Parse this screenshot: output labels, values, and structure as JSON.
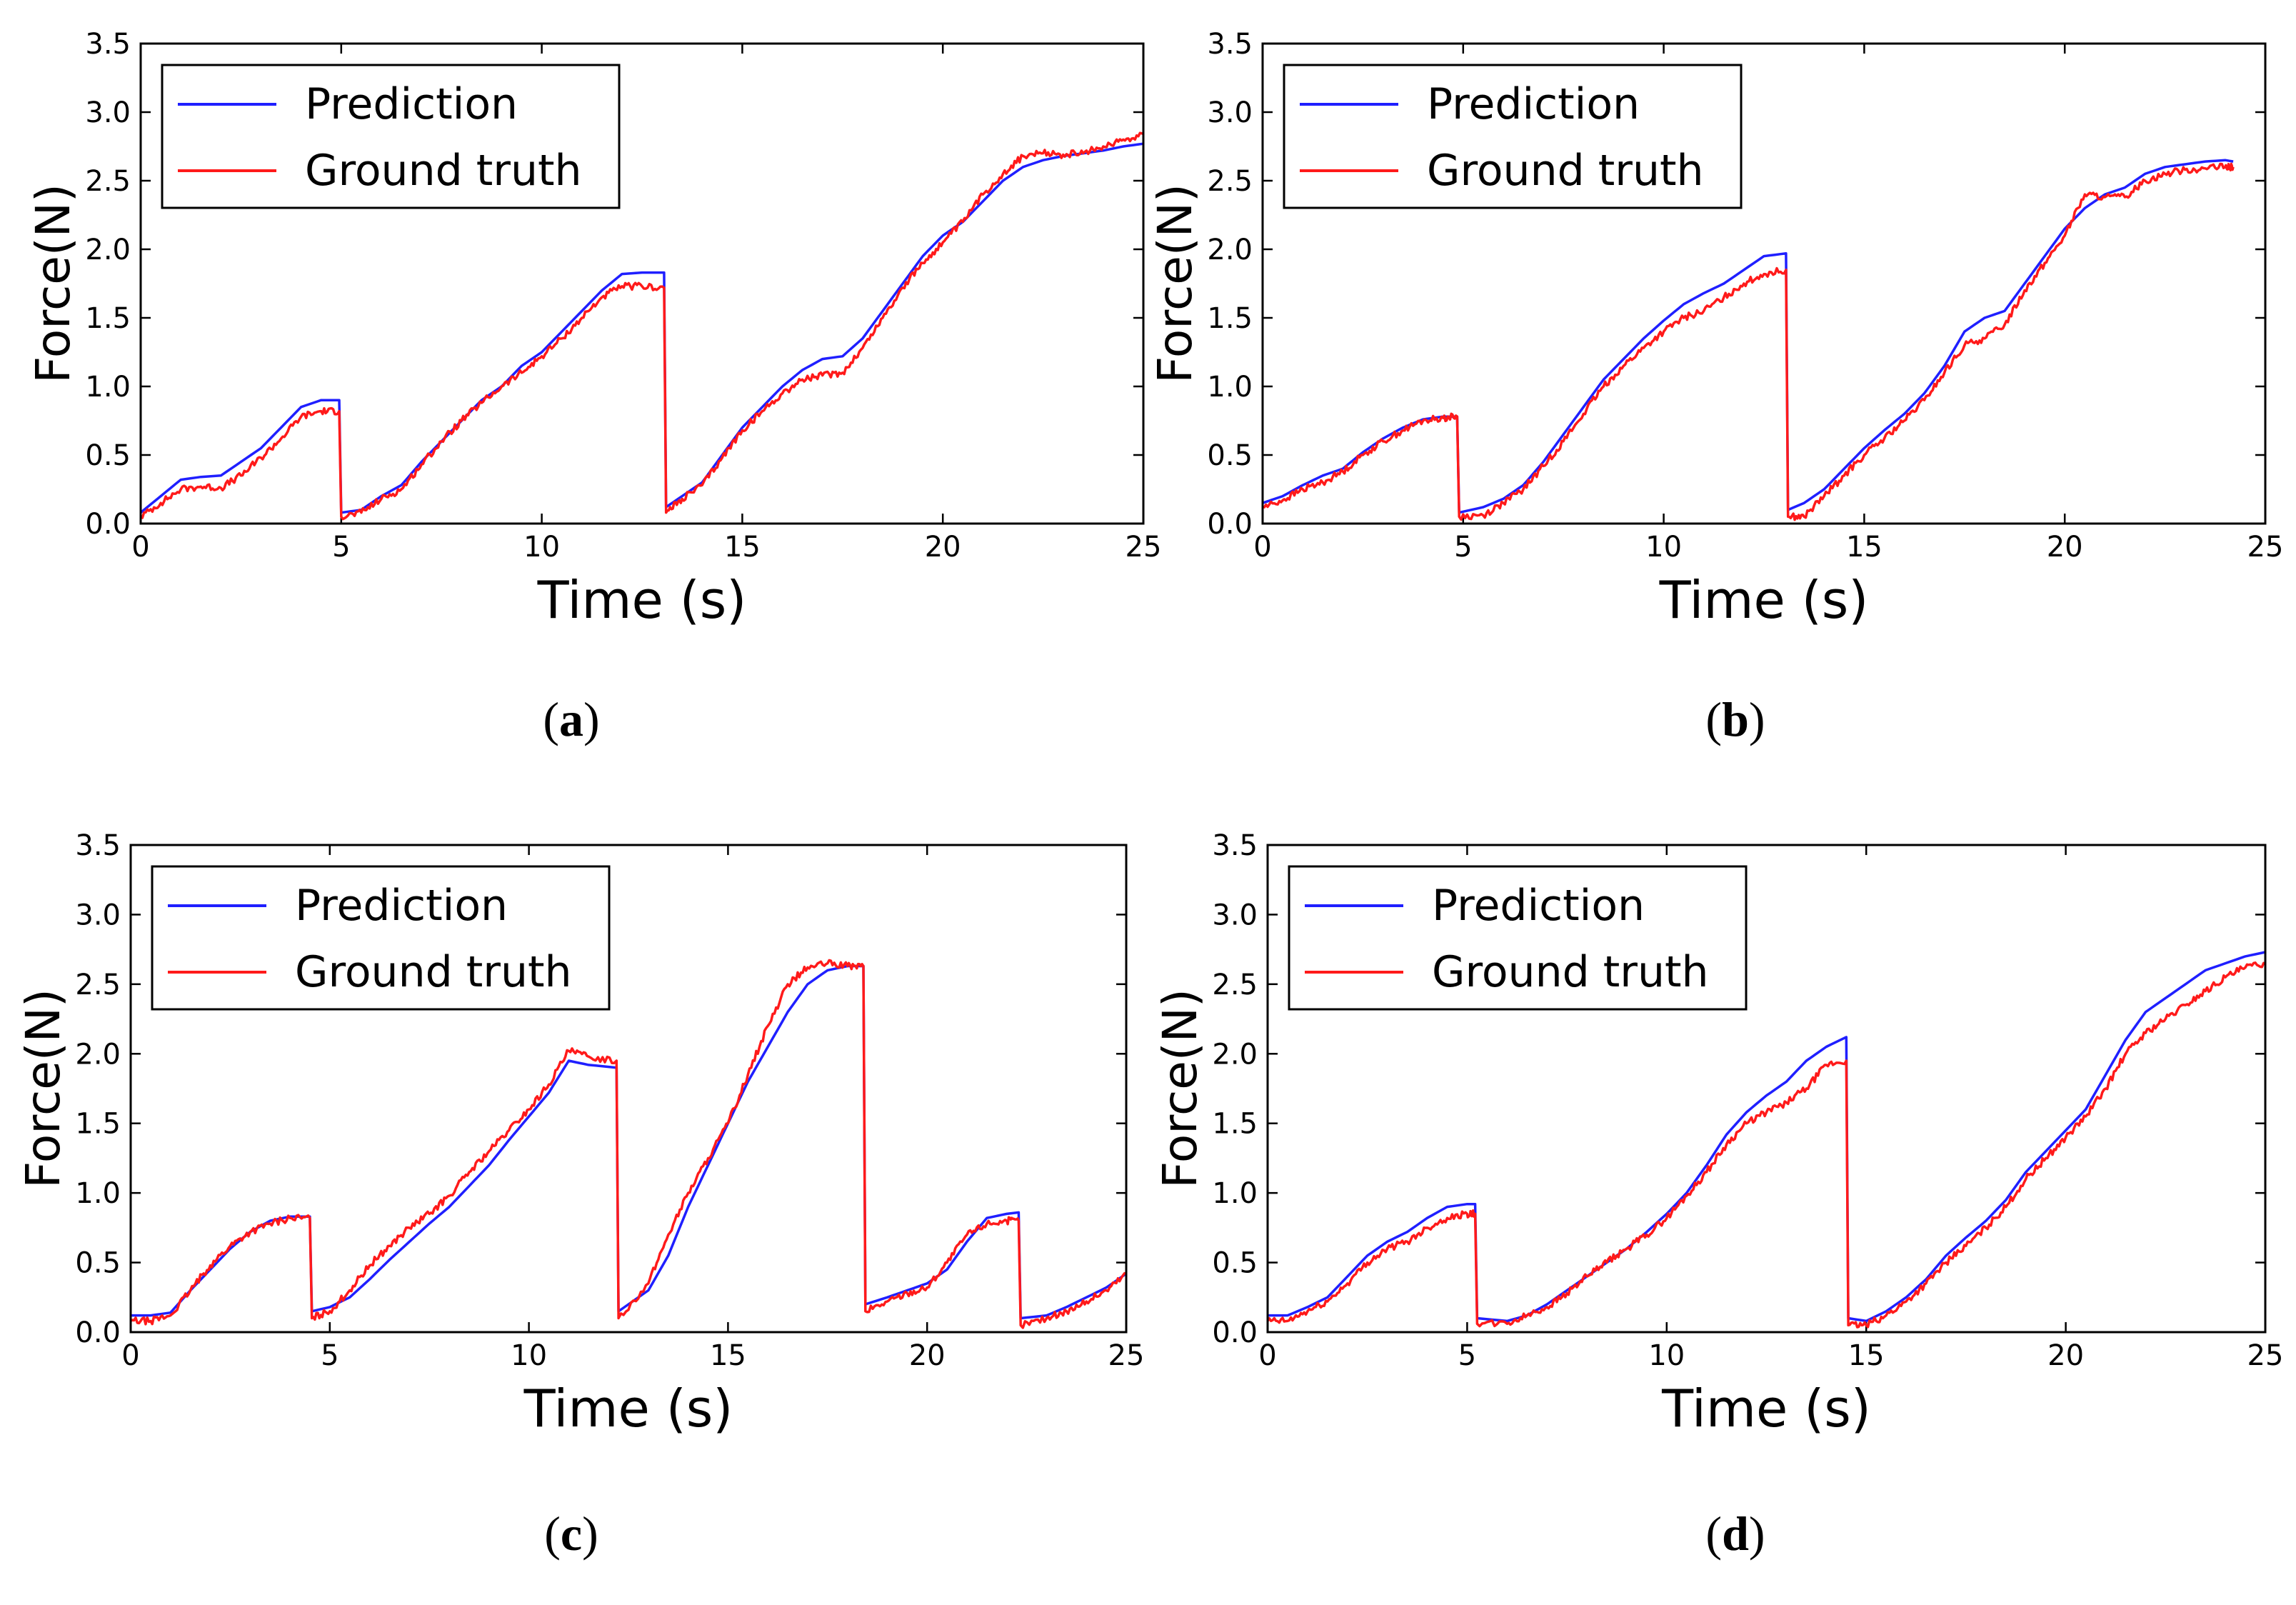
{
  "figure": {
    "legend_prediction": "Prediction",
    "legend_ground_truth": "Ground truth",
    "colors": {
      "prediction": "#1f1fff",
      "ground_truth": "#ff1a1a"
    }
  },
  "chart_data": [
    {
      "id": "a",
      "caption": "a",
      "type": "line",
      "xlabel": "Time (s)",
      "ylabel": "Force(N)",
      "xlim": [
        0,
        25
      ],
      "ylim": [
        0,
        3.5
      ],
      "xticks": [
        0,
        5,
        10,
        15,
        20,
        25
      ],
      "xtick_labels": [
        "0",
        "5",
        "10",
        "15",
        "20",
        "25"
      ],
      "yticks": [
        0,
        0.5,
        1,
        1.5,
        2,
        2.5,
        3,
        3.5
      ],
      "ytick_labels": [
        "0.0",
        "0.5",
        "1.0",
        "1.5",
        "2.0",
        "2.5",
        "3.0",
        "3.5"
      ],
      "legend": {
        "placement": "top-left",
        "entries": [
          "Prediction",
          "Ground truth"
        ]
      },
      "series": [
        {
          "name": "Prediction",
          "x": [
            0,
            0.5,
            1,
            1.5,
            2,
            2.5,
            3,
            3.5,
            4,
            4.5,
            4.95,
            5.0,
            5.5,
            6,
            6.5,
            7,
            7.5,
            8,
            8.5,
            9,
            9.5,
            10,
            10.5,
            11,
            11.5,
            12,
            12.5,
            13.05,
            13.1,
            13.5,
            14,
            14.5,
            15,
            15.5,
            16,
            16.5,
            17,
            17.5,
            18,
            18.5,
            19,
            19.5,
            20,
            20.5,
            21,
            21.5,
            22,
            22.5,
            23,
            23.5,
            24,
            24.5,
            25
          ],
          "y": [
            0.08,
            0.2,
            0.32,
            0.34,
            0.35,
            0.45,
            0.55,
            0.7,
            0.85,
            0.9,
            0.9,
            0.08,
            0.1,
            0.2,
            0.28,
            0.45,
            0.6,
            0.75,
            0.9,
            1.0,
            1.15,
            1.25,
            1.4,
            1.55,
            1.7,
            1.82,
            1.83,
            1.83,
            0.12,
            0.2,
            0.3,
            0.5,
            0.7,
            0.85,
            1.0,
            1.12,
            1.2,
            1.22,
            1.35,
            1.55,
            1.75,
            1.95,
            2.1,
            2.2,
            2.35,
            2.5,
            2.6,
            2.65,
            2.68,
            2.7,
            2.72,
            2.75,
            2.77
          ]
        },
        {
          "name": "Ground truth",
          "x": [
            0,
            0.5,
            1,
            1.5,
            2,
            2.5,
            3,
            3.5,
            4,
            4.5,
            4.95,
            5.0,
            5.5,
            6,
            6.5,
            7,
            7.5,
            8,
            8.5,
            9,
            9.5,
            10,
            10.5,
            11,
            11.5,
            12,
            12.5,
            13.05,
            13.1,
            13.5,
            14,
            14.5,
            15,
            15.5,
            16,
            16.5,
            17,
            17.5,
            18,
            18.5,
            19,
            19.5,
            20,
            20.5,
            21,
            21.5,
            22,
            22.5,
            23,
            23.5,
            24,
            24.5,
            25
          ],
          "y": [
            0.05,
            0.15,
            0.25,
            0.27,
            0.26,
            0.35,
            0.48,
            0.62,
            0.78,
            0.82,
            0.82,
            0.05,
            0.08,
            0.18,
            0.25,
            0.43,
            0.6,
            0.75,
            0.88,
            1.0,
            1.1,
            1.22,
            1.35,
            1.5,
            1.65,
            1.73,
            1.73,
            1.72,
            0.08,
            0.18,
            0.28,
            0.48,
            0.68,
            0.82,
            0.95,
            1.05,
            1.08,
            1.1,
            1.28,
            1.5,
            1.72,
            1.9,
            2.05,
            2.2,
            2.4,
            2.55,
            2.68,
            2.7,
            2.69,
            2.7,
            2.75,
            2.8,
            2.84
          ]
        }
      ]
    },
    {
      "id": "b",
      "caption": "b",
      "type": "line",
      "xlabel": "Time (s)",
      "ylabel": "Force(N)",
      "xlim": [
        0,
        25
      ],
      "ylim": [
        0,
        3.5
      ],
      "xticks": [
        0,
        5,
        10,
        15,
        20,
        25
      ],
      "xtick_labels": [
        "0",
        "5",
        "10",
        "15",
        "20",
        "25"
      ],
      "yticks": [
        0,
        0.5,
        1,
        1.5,
        2,
        2.5,
        3,
        3.5
      ],
      "ytick_labels": [
        "0.0",
        "0.5",
        "1.0",
        "1.5",
        "2.0",
        "2.5",
        "3.0",
        "3.5"
      ],
      "legend": {
        "placement": "top-left",
        "entries": [
          "Prediction",
          "Ground truth"
        ]
      },
      "series": [
        {
          "name": "Prediction",
          "x": [
            0,
            0.5,
            1,
            1.5,
            2,
            2.5,
            3,
            3.5,
            4,
            4.5,
            4.85,
            4.9,
            5.5,
            6,
            6.5,
            7,
            7.5,
            8,
            8.5,
            9,
            9.5,
            10,
            10.5,
            11,
            11.5,
            12,
            12.5,
            13.05,
            13.1,
            13.5,
            14,
            14.5,
            15,
            15.5,
            16,
            16.5,
            17,
            17.5,
            18,
            18.5,
            19,
            19.5,
            20,
            20.5,
            21,
            21.5,
            22,
            22.5,
            23,
            23.5,
            24,
            24.2
          ],
          "y": [
            0.15,
            0.2,
            0.28,
            0.35,
            0.4,
            0.52,
            0.62,
            0.7,
            0.76,
            0.78,
            0.78,
            0.08,
            0.12,
            0.18,
            0.28,
            0.45,
            0.65,
            0.85,
            1.05,
            1.2,
            1.35,
            1.48,
            1.6,
            1.68,
            1.75,
            1.85,
            1.95,
            1.97,
            0.1,
            0.15,
            0.25,
            0.4,
            0.55,
            0.68,
            0.8,
            0.95,
            1.15,
            1.4,
            1.5,
            1.55,
            1.75,
            1.95,
            2.15,
            2.3,
            2.4,
            2.45,
            2.55,
            2.6,
            2.62,
            2.64,
            2.65,
            2.64
          ]
        },
        {
          "name": "Ground truth",
          "x": [
            0,
            0.5,
            1,
            1.5,
            2,
            2.5,
            3,
            3.5,
            4,
            4.5,
            4.85,
            4.9,
            5.5,
            6,
            6.5,
            7,
            7.5,
            8,
            8.5,
            9,
            9.5,
            10,
            10.5,
            11,
            11.5,
            12,
            12.5,
            13.05,
            13.1,
            13.5,
            14,
            14.5,
            15,
            15.5,
            16,
            16.5,
            17,
            17.5,
            18,
            18.5,
            19,
            19.5,
            20,
            20.5,
            21,
            21.5,
            22,
            22.5,
            23,
            23.5,
            24,
            24.2
          ],
          "y": [
            0.12,
            0.17,
            0.25,
            0.3,
            0.38,
            0.5,
            0.6,
            0.68,
            0.75,
            0.77,
            0.78,
            0.05,
            0.06,
            0.15,
            0.25,
            0.42,
            0.6,
            0.8,
            1.0,
            1.15,
            1.28,
            1.4,
            1.5,
            1.55,
            1.65,
            1.75,
            1.82,
            1.85,
            0.05,
            0.05,
            0.2,
            0.35,
            0.5,
            0.62,
            0.75,
            0.9,
            1.1,
            1.3,
            1.35,
            1.45,
            1.7,
            1.9,
            2.1,
            2.4,
            2.38,
            2.38,
            2.5,
            2.55,
            2.58,
            2.59,
            2.6,
            2.6
          ]
        }
      ]
    },
    {
      "id": "c",
      "caption": "c",
      "type": "line",
      "xlabel": "Time (s)",
      "ylabel": "Force(N)",
      "xlim": [
        0,
        25
      ],
      "ylim": [
        0,
        3.5
      ],
      "xticks": [
        0,
        5,
        10,
        15,
        20,
        25
      ],
      "xtick_labels": [
        "0",
        "5",
        "10",
        "15",
        "20",
        "25"
      ],
      "yticks": [
        0,
        0.5,
        1,
        1.5,
        2,
        2.5,
        3,
        3.5
      ],
      "ytick_labels": [
        "0.0",
        "0.5",
        "1.0",
        "1.5",
        "2.0",
        "2.5",
        "3.0",
        "3.5"
      ],
      "legend": {
        "placement": "top-left",
        "entries": [
          "Prediction",
          "Ground truth"
        ]
      },
      "series": [
        {
          "name": "Prediction",
          "x": [
            0,
            0.5,
            1,
            1.5,
            2,
            2.5,
            3,
            3.5,
            4,
            4.5,
            4.55,
            5,
            5.5,
            6,
            6.5,
            7,
            7.5,
            8,
            8.5,
            9,
            9.5,
            10,
            10.5,
            11,
            11.5,
            12.2,
            12.25,
            13,
            13.5,
            14,
            14.5,
            15,
            15.5,
            16,
            16.5,
            17,
            17.5,
            18,
            18.4,
            18.45,
            19,
            19.5,
            20,
            20.5,
            21,
            21.5,
            22,
            22.3,
            22.35,
            23,
            23.5,
            24,
            24.5,
            25
          ],
          "y": [
            0.12,
            0.12,
            0.14,
            0.3,
            0.45,
            0.6,
            0.72,
            0.8,
            0.83,
            0.83,
            0.15,
            0.18,
            0.25,
            0.38,
            0.52,
            0.65,
            0.78,
            0.9,
            1.05,
            1.2,
            1.38,
            1.55,
            1.72,
            1.95,
            1.92,
            1.9,
            0.15,
            0.3,
            0.55,
            0.9,
            1.2,
            1.5,
            1.8,
            2.05,
            2.3,
            2.5,
            2.6,
            2.63,
            2.63,
            0.2,
            0.25,
            0.3,
            0.35,
            0.45,
            0.65,
            0.82,
            0.85,
            0.86,
            0.1,
            0.12,
            0.18,
            0.25,
            0.32,
            0.42
          ]
        },
        {
          "name": "Ground truth",
          "x": [
            0,
            0.5,
            1,
            1.5,
            2,
            2.5,
            3,
            3.5,
            4,
            4.5,
            4.55,
            5,
            5.5,
            6,
            6.5,
            7,
            7.5,
            8,
            8.5,
            9,
            9.5,
            10,
            10.5,
            11,
            11.5,
            12.2,
            12.25,
            13,
            13.5,
            14,
            14.5,
            15,
            15.5,
            16,
            16.5,
            17,
            17.5,
            18,
            18.4,
            18.45,
            19,
            19.5,
            20,
            20.5,
            21,
            21.5,
            22,
            22.3,
            22.35,
            23,
            23.5,
            24,
            24.5,
            25
          ],
          "y": [
            0.08,
            0.08,
            0.12,
            0.3,
            0.48,
            0.62,
            0.72,
            0.78,
            0.82,
            0.82,
            0.1,
            0.15,
            0.3,
            0.48,
            0.62,
            0.75,
            0.85,
            0.98,
            1.15,
            1.3,
            1.45,
            1.6,
            1.78,
            2.02,
            1.98,
            1.95,
            0.1,
            0.35,
            0.7,
            1.0,
            1.25,
            1.5,
            1.85,
            2.2,
            2.5,
            2.62,
            2.65,
            2.63,
            2.63,
            0.15,
            0.22,
            0.28,
            0.32,
            0.5,
            0.7,
            0.78,
            0.8,
            0.8,
            0.05,
            0.1,
            0.15,
            0.22,
            0.3,
            0.42
          ]
        }
      ]
    },
    {
      "id": "d",
      "caption": "d",
      "type": "line",
      "xlabel": "Time (s)",
      "ylabel": "Force(N)",
      "xlim": [
        0,
        25
      ],
      "ylim": [
        0,
        3.5
      ],
      "xticks": [
        0,
        5,
        10,
        15,
        20,
        25
      ],
      "xtick_labels": [
        "0",
        "5",
        "10",
        "15",
        "20",
        "25"
      ],
      "yticks": [
        0,
        0.5,
        1,
        1.5,
        2,
        2.5,
        3,
        3.5
      ],
      "ytick_labels": [
        "0.0",
        "0.5",
        "1.0",
        "1.5",
        "2.0",
        "2.5",
        "3.0",
        "3.5"
      ],
      "legend": {
        "placement": "top-left",
        "entries": [
          "Prediction",
          "Ground truth"
        ]
      },
      "series": [
        {
          "name": "Prediction",
          "x": [
            0,
            0.5,
            1,
            1.5,
            2,
            2.5,
            3,
            3.5,
            4,
            4.5,
            5,
            5.2,
            5.25,
            6,
            6.5,
            7,
            7.5,
            8,
            8.5,
            9,
            9.5,
            10,
            10.5,
            11,
            11.5,
            12,
            12.5,
            13,
            13.5,
            14,
            14.5,
            14.55,
            15,
            15.5,
            16,
            16.5,
            17,
            17.5,
            18,
            18.5,
            19,
            19.5,
            20,
            20.5,
            21,
            21.5,
            22,
            22.5,
            23,
            23.5,
            24,
            24.5,
            25
          ],
          "y": [
            0.12,
            0.12,
            0.18,
            0.25,
            0.4,
            0.55,
            0.65,
            0.72,
            0.82,
            0.9,
            0.92,
            0.92,
            0.1,
            0.08,
            0.12,
            0.2,
            0.3,
            0.4,
            0.5,
            0.6,
            0.72,
            0.85,
            1.0,
            1.2,
            1.42,
            1.58,
            1.7,
            1.8,
            1.95,
            2.05,
            2.12,
            0.1,
            0.08,
            0.15,
            0.25,
            0.38,
            0.55,
            0.68,
            0.8,
            0.95,
            1.15,
            1.3,
            1.45,
            1.6,
            1.85,
            2.1,
            2.3,
            2.4,
            2.5,
            2.6,
            2.65,
            2.7,
            2.73
          ]
        },
        {
          "name": "Ground truth",
          "x": [
            0,
            0.5,
            1,
            1.5,
            2,
            2.5,
            3,
            3.5,
            4,
            4.5,
            5,
            5.2,
            5.25,
            6,
            6.5,
            7,
            7.5,
            8,
            8.5,
            9,
            9.5,
            10,
            10.5,
            11,
            11.5,
            12,
            12.5,
            13,
            13.5,
            14,
            14.5,
            14.55,
            15,
            15.5,
            16,
            16.5,
            17,
            17.5,
            18,
            18.5,
            19,
            19.5,
            20,
            20.5,
            21,
            21.5,
            22,
            22.5,
            23,
            23.5,
            24,
            24.5,
            25
          ],
          "y": [
            0.08,
            0.08,
            0.15,
            0.22,
            0.35,
            0.5,
            0.6,
            0.65,
            0.75,
            0.82,
            0.85,
            0.85,
            0.06,
            0.06,
            0.12,
            0.18,
            0.28,
            0.4,
            0.5,
            0.6,
            0.7,
            0.82,
            0.98,
            1.15,
            1.35,
            1.5,
            1.58,
            1.65,
            1.75,
            1.92,
            1.95,
            0.05,
            0.05,
            0.12,
            0.22,
            0.35,
            0.5,
            0.62,
            0.75,
            0.9,
            1.1,
            1.25,
            1.4,
            1.55,
            1.75,
            2.0,
            2.15,
            2.25,
            2.35,
            2.45,
            2.55,
            2.62,
            2.65
          ]
        }
      ]
    }
  ]
}
